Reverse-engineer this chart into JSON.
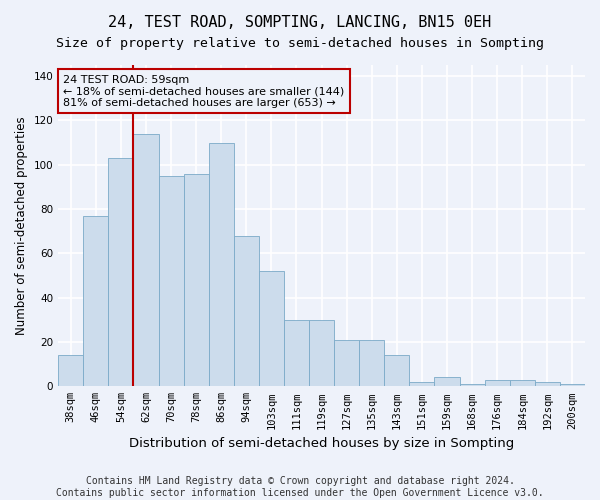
{
  "title": "24, TEST ROAD, SOMPTING, LANCING, BN15 0EH",
  "subtitle": "Size of property relative to semi-detached houses in Sompting",
  "xlabel": "Distribution of semi-detached houses by size in Sompting",
  "ylabel": "Number of semi-detached properties",
  "categories": [
    "38sqm",
    "46sqm",
    "54sqm",
    "62sqm",
    "70sqm",
    "78sqm",
    "86sqm",
    "94sqm",
    "103sqm",
    "111sqm",
    "119sqm",
    "127sqm",
    "135sqm",
    "143sqm",
    "151sqm",
    "159sqm",
    "168sqm",
    "176sqm",
    "184sqm",
    "192sqm",
    "200sqm"
  ],
  "values": [
    14,
    77,
    103,
    114,
    95,
    96,
    110,
    68,
    52,
    30,
    30,
    21,
    21,
    14,
    2,
    4,
    1,
    3,
    3,
    2,
    1
  ],
  "bar_color": "#ccdcec",
  "bar_edge_color": "#7baac8",
  "annotation_box_color": "#bb0000",
  "property_label": "24 TEST ROAD: 59sqm",
  "pct_smaller": 18,
  "pct_larger": 81,
  "count_smaller": 144,
  "count_larger": 653,
  "vline_bin_index": 3,
  "ylim": [
    0,
    145
  ],
  "yticks": [
    0,
    20,
    40,
    60,
    80,
    100,
    120,
    140
  ],
  "footer1": "Contains HM Land Registry data © Crown copyright and database right 2024.",
  "footer2": "Contains public sector information licensed under the Open Government Licence v3.0.",
  "bg_color": "#eef2fa",
  "grid_color": "#ffffff",
  "title_fontsize": 11,
  "subtitle_fontsize": 9.5,
  "tick_fontsize": 7.5,
  "ylabel_fontsize": 8.5,
  "xlabel_fontsize": 9.5,
  "footer_fontsize": 7,
  "ann_fontsize": 8
}
